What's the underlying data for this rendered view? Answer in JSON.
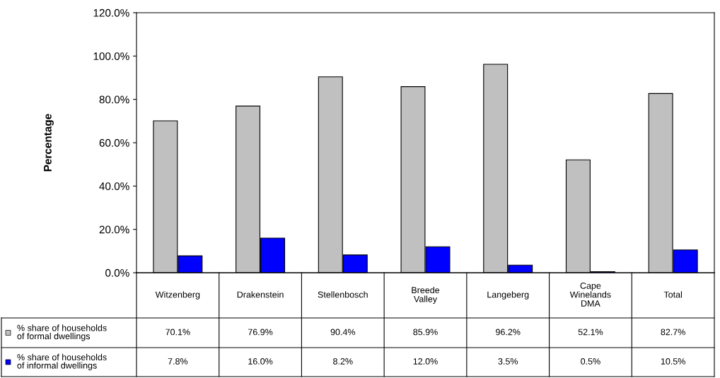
{
  "chart_data": {
    "type": "bar",
    "ylabel": "Percentage",
    "categories": [
      "Witzenberg",
      "Drakenstein",
      "Stellenbosch",
      "Breede\nValley",
      "Langeberg",
      "Cape\nWinelands\nDMA",
      "Total"
    ],
    "series": [
      {
        "name": "% share of households\nof formal dwellings",
        "color": "#c0c0c0",
        "values": [
          70.1,
          76.9,
          90.4,
          85.9,
          96.2,
          52.1,
          82.7
        ],
        "value_labels": [
          "70.1%",
          "76.9%",
          "90.4%",
          "85.9%",
          "96.2%",
          "52.1%",
          "82.7%"
        ]
      },
      {
        "name": "% share of households\nof informal dwellings",
        "color": "#0000ff",
        "values": [
          7.8,
          16.0,
          8.2,
          12.0,
          3.5,
          0.5,
          10.5
        ],
        "value_labels": [
          "7.8%",
          "16.0%",
          "8.2%",
          "12.0%",
          "3.5%",
          "0.5%",
          "10.5%"
        ]
      }
    ],
    "ylim": [
      0,
      120
    ],
    "yticks": [
      {
        "value": 0,
        "label": "0.0%"
      },
      {
        "value": 20,
        "label": "20.0%"
      },
      {
        "value": 40,
        "label": "40.0%"
      },
      {
        "value": 60,
        "label": "60.0%"
      },
      {
        "value": 80,
        "label": "80.0%"
      },
      {
        "value": 100,
        "label": "100.0%"
      },
      {
        "value": 120,
        "label": "120.0%"
      }
    ],
    "grid": false,
    "legend": "bottom"
  }
}
